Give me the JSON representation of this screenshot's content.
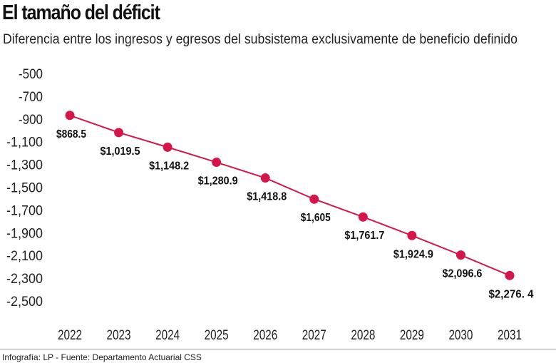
{
  "header": {
    "title": "El tamaño del déficit",
    "subtitle": "Diferencia entre los ingresos y egresos del subsistema exclusivamente de beneficio definido"
  },
  "footer": {
    "credit": "Infografía: LP - Fuente: Departamento Actuarial CSS"
  },
  "chart_data": {
    "type": "line",
    "title": "El tamaño del déficit",
    "subtitle": "Diferencia entre los ingresos y egresos del subsistema exclusivamente de beneficio definido",
    "xlabel": "",
    "ylabel": "",
    "x": [
      "2022",
      "2023",
      "2024",
      "2025",
      "2026",
      "2027",
      "2028",
      "2029",
      "2030",
      "2031"
    ],
    "series": [
      {
        "values": [
          -868.5,
          -1019.5,
          -1148.2,
          -1280.9,
          -1418.8,
          -1605,
          -1761.7,
          -1924.9,
          -2096.6,
          -2276.4
        ],
        "labels": [
          "$868.5",
          "$1,019.5",
          "$1,148.2",
          "$1,280.9",
          "$1,418.8",
          "$1,605",
          "$1,761.7",
          "$1,924.9",
          "$2,096.6",
          "$2,276. 4"
        ],
        "color": "#d4174a"
      }
    ],
    "ylim": [
      -2500,
      -500
    ],
    "yticks": [
      "-500",
      "-700",
      "-900",
      "-1,100",
      "-1,300",
      "-1,500",
      "-1,700",
      "-1,900",
      "-2,100",
      "-2,300",
      "-2,500"
    ],
    "grid": false,
    "legend": "none"
  }
}
